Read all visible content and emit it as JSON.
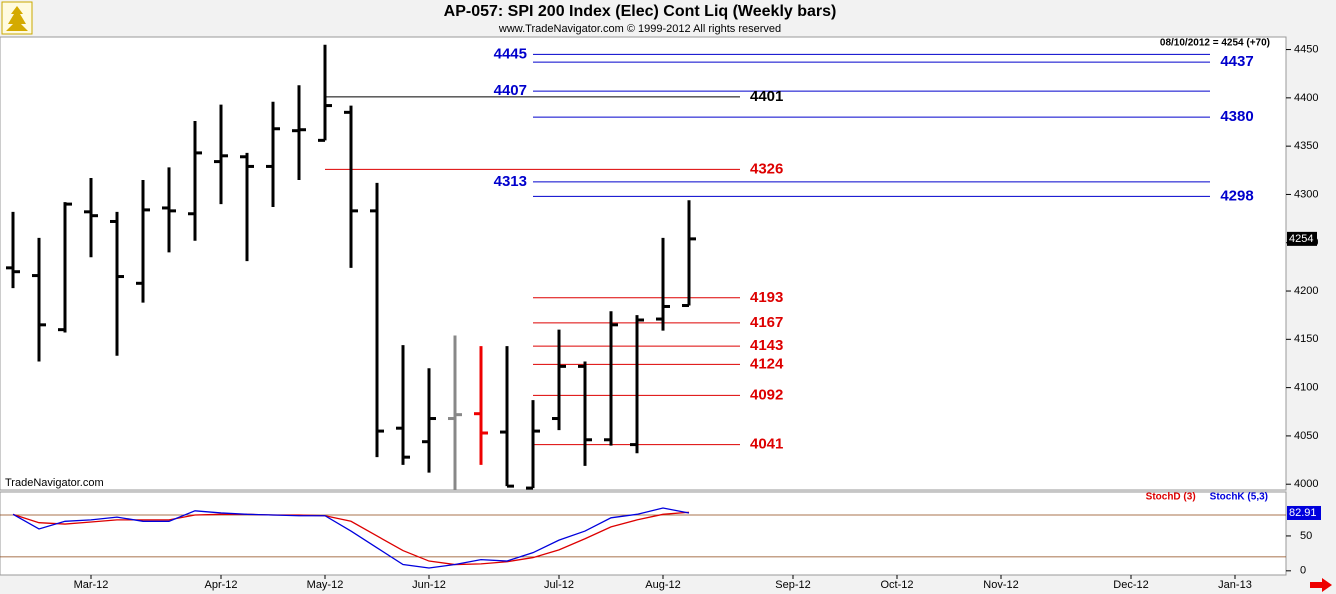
{
  "header": {
    "title": "AP-057:  SPI 200 Index (Elec) Cont Liq  (Weekly bars)",
    "subtitle": "www.TradeNavigator.com © 1999-2012 All rights reserved",
    "watermark": "TradeNavigator.com"
  },
  "chart_data": [
    {
      "type": "ohlc",
      "last_quote": "08/10/2012 = 4254 (+70)",
      "categories": [
        null,
        null,
        null,
        "Mar-12",
        null,
        null,
        null,
        null,
        "Apr-12",
        null,
        null,
        null,
        "May-12",
        null,
        null,
        null,
        "Jun-12",
        null,
        null,
        null,
        null,
        "Jul-12",
        null,
        null,
        null,
        "Aug-12",
        null,
        null,
        null,
        null,
        "Sep-12",
        null,
        null,
        null,
        "Oct-12",
        null,
        null,
        null,
        "Nov-12",
        null,
        null,
        null,
        null,
        "Dec-12",
        null,
        null,
        null,
        "Jan-13",
        null,
        null
      ],
      "open": [
        4224,
        4216,
        4160,
        4282,
        4272,
        4208,
        4286,
        4280,
        4334,
        4339,
        4329,
        4366,
        4356,
        4385,
        4283,
        4058,
        4044,
        4068,
        4073,
        4054,
        3996,
        4068,
        4122,
        4046,
        4041,
        4171,
        4185,
        null,
        null,
        null,
        null,
        null,
        null,
        null,
        null,
        null,
        null,
        null,
        null,
        null,
        null,
        null,
        null,
        null,
        null,
        null,
        null,
        null,
        null,
        null
      ],
      "high": [
        4282,
        4255,
        4292,
        4317,
        4282,
        4315,
        4328,
        4376,
        4393,
        4343,
        4396,
        4413,
        4455,
        4392,
        4312,
        4144,
        4120,
        4154,
        4143,
        4143,
        4087,
        4160,
        4127,
        4179,
        4175,
        4255,
        4294,
        null,
        null,
        null,
        null,
        null,
        null,
        null,
        null,
        null,
        null,
        null,
        null,
        null,
        null,
        null,
        null,
        null,
        null,
        null,
        null,
        null,
        null,
        null
      ],
      "low": [
        4203,
        4127,
        4157,
        4235,
        4133,
        4188,
        4240,
        4252,
        4290,
        4231,
        4287,
        4315,
        4356,
        4224,
        4028,
        4020,
        4012,
        3994,
        4020,
        3998,
        3996,
        4056,
        4019,
        4040,
        4032,
        4159,
        4185,
        null,
        null,
        null,
        null,
        null,
        null,
        null,
        null,
        null,
        null,
        null,
        null,
        null,
        null,
        null,
        null,
        null,
        null,
        null,
        null,
        null,
        null,
        null
      ],
      "close": [
        4220,
        4165,
        4290,
        4278,
        4215,
        4284,
        4283,
        4343,
        4340,
        4329,
        4368,
        4367,
        4392,
        4283,
        4055,
        4028,
        4068,
        4072,
        4053,
        3998,
        4055,
        4122,
        4046,
        4165,
        4170,
        4184,
        4254,
        null,
        null,
        null,
        null,
        null,
        null,
        null,
        null,
        null,
        null,
        null,
        null,
        null,
        null,
        null,
        null,
        null,
        null,
        null,
        null,
        null,
        null,
        null
      ],
      "colors": [
        "#000000",
        "#000000",
        "#000000",
        "#000000",
        "#000000",
        "#000000",
        "#000000",
        "#000000",
        "#000000",
        "#000000",
        "#000000",
        "#000000",
        "#000000",
        "#000000",
        "#000000",
        "#000000",
        "#000000",
        "#888888",
        "#ee0000",
        "#000000",
        "#000000",
        "#000000",
        "#000000",
        "#000000",
        "#000000",
        "#000000",
        "#000000",
        null,
        null,
        null,
        null,
        null,
        null,
        null,
        null,
        null,
        null,
        null,
        null,
        null,
        null,
        null,
        null,
        null,
        null,
        null,
        null,
        null,
        null,
        null
      ],
      "ylim": [
        3994,
        4463
      ],
      "yticks": [
        4000,
        4050,
        4100,
        4150,
        4200,
        4250,
        4300,
        4350,
        4400,
        4450
      ],
      "levels": [
        {
          "color": "#0000cc",
          "values": [
            4445,
            4407,
            4313
          ]
        },
        {
          "color": "#0000cc",
          "values": [
            4437,
            4380,
            4298
          ]
        },
        {
          "color": "#000000",
          "values": [
            4401
          ]
        },
        {
          "color": "#dd0000",
          "values": [
            4326
          ]
        },
        {
          "color": "#dd0000",
          "values": [
            4193,
            4167,
            4143,
            4124,
            4092,
            4041
          ]
        }
      ]
    },
    {
      "type": "line",
      "series": [
        {
          "name": "StochD (3)",
          "color": "#dd0000",
          "values": [
            81,
            69,
            67,
            70,
            73,
            73,
            73,
            80,
            81,
            81,
            80,
            80,
            79,
            71,
            50,
            29,
            14,
            9,
            10,
            13,
            19,
            30,
            46,
            63,
            73,
            81,
            84,
            null,
            null,
            null,
            null,
            null,
            null,
            null,
            null,
            null,
            null,
            null,
            null,
            null,
            null,
            null,
            null,
            null,
            null,
            null,
            null,
            null,
            null,
            null
          ]
        },
        {
          "name": "StochK (5,3)",
          "color": "#0000dd",
          "values": [
            81,
            60,
            71,
            73,
            77,
            71,
            71,
            86,
            83,
            81,
            80,
            79,
            79,
            57,
            33,
            9,
            4,
            9,
            16,
            14,
            26,
            44,
            57,
            76,
            81,
            90,
            82.91,
            null,
            null,
            null,
            null,
            null,
            null,
            null,
            null,
            null,
            null,
            null,
            null,
            null,
            null,
            null,
            null,
            null,
            null,
            null,
            null,
            null,
            null,
            null
          ]
        }
      ],
      "ylim": [
        -6,
        113
      ],
      "yticks": [
        0,
        50
      ],
      "reference_lines": [
        20,
        80
      ]
    }
  ]
}
